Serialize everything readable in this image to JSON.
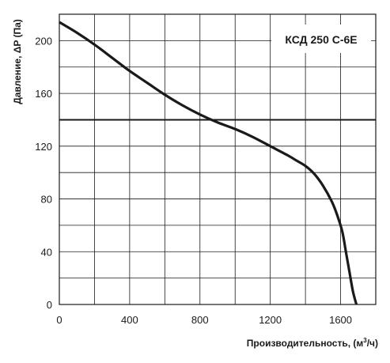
{
  "chart_data": {
    "type": "line",
    "title": "",
    "legend_label": "КСД 250 С-6Е",
    "legend_position": "top-right",
    "xlabel_main": "Производительность, (м",
    "xlabel_sup": "3",
    "xlabel_tail": "/ч)",
    "ylabel": "Давление, ΔP (Па)",
    "xlim": [
      0,
      1800
    ],
    "ylim": [
      0,
      220
    ],
    "x_ticks": [
      0,
      400,
      800,
      1200,
      1600
    ],
    "y_ticks": [
      0,
      40,
      80,
      120,
      160,
      200
    ],
    "x_grid": [
      0,
      200,
      400,
      600,
      800,
      1000,
      1200,
      1400,
      1600,
      1800
    ],
    "y_grid": [
      0,
      20,
      40,
      60,
      80,
      100,
      120,
      140,
      160,
      180,
      200,
      220
    ],
    "grid": true,
    "reference_line": {
      "y": 140
    },
    "series": [
      {
        "x": [
          0,
          100,
          200,
          300,
          400,
          500,
          600,
          700,
          800,
          900,
          1000,
          1100,
          1200,
          1300,
          1350,
          1400,
          1450,
          1500,
          1550,
          1580,
          1610,
          1630,
          1650,
          1670,
          1690
        ],
        "y": [
          214,
          206,
          197,
          187,
          177,
          168,
          159,
          151,
          144,
          138,
          133,
          127,
          120,
          113,
          109,
          105,
          99,
          90,
          78,
          68,
          55,
          40,
          25,
          10,
          0
        ]
      }
    ],
    "colors": {
      "line": "#1a1a1a",
      "grid": "#1a1a1a",
      "reference": "#1a1a1a"
    }
  }
}
